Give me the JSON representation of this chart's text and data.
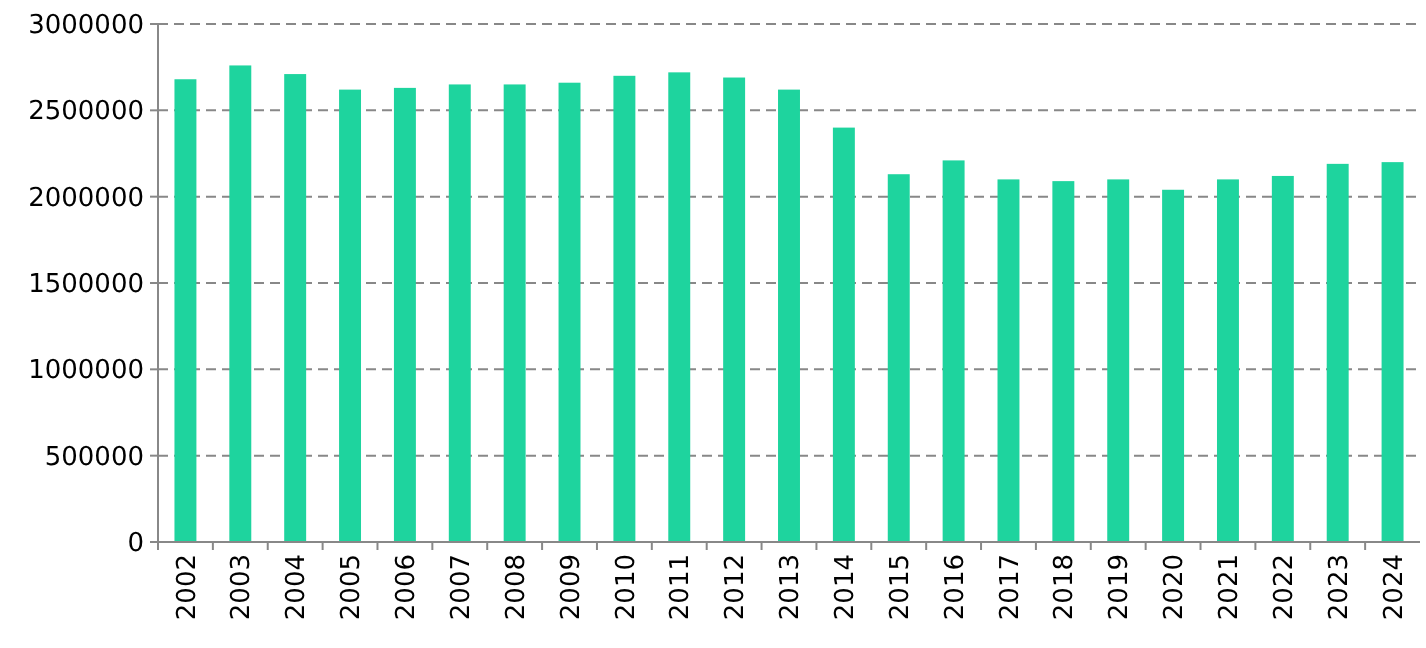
{
  "chart_data": {
    "type": "bar",
    "categories": [
      "2002",
      "2003",
      "2004",
      "2005",
      "2006",
      "2007",
      "2008",
      "2009",
      "2010",
      "2011",
      "2012",
      "2013",
      "2014",
      "2015",
      "2016",
      "2017",
      "2018",
      "2019",
      "2020",
      "2021",
      "2022",
      "2023",
      "2024"
    ],
    "values": [
      2680000,
      2760000,
      2710000,
      2620000,
      2630000,
      2650000,
      2650000,
      2660000,
      2700000,
      2720000,
      2690000,
      2620000,
      2400000,
      2130000,
      2210000,
      2100000,
      2090000,
      2100000,
      2040000,
      2100000,
      2120000,
      2190000,
      2200000
    ],
    "color": "#1ed49e",
    "ylim": [
      0,
      3000000
    ],
    "yticks": [
      0,
      500000,
      1000000,
      1500000,
      2000000,
      2500000,
      3000000
    ],
    "grid": "y"
  }
}
